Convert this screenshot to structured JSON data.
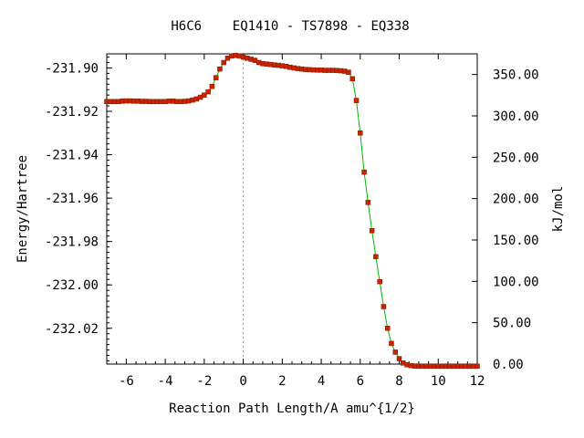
{
  "chart_data": {
    "type": "line",
    "title": "H6C6    EQ1410 - TS7898 - EQ338",
    "xlabel": "Reaction Path Length/A amu^{1/2}",
    "ylabel": "Energy/Hartree",
    "y2label": "kJ/mol",
    "xlim": [
      -7,
      12
    ],
    "ylim": [
      -232.0365,
      -231.8935
    ],
    "y2lim": [
      0,
      375
    ],
    "xticks": [
      "-6",
      "-4",
      "-2",
      "0",
      "2",
      "4",
      "6",
      "8",
      "10",
      "12"
    ],
    "xtick_values": [
      -6,
      -4,
      -2,
      0,
      2,
      4,
      6,
      8,
      10,
      12
    ],
    "yticks": [
      "-231.90",
      "-231.92",
      "-231.94",
      "-231.96",
      "-231.98",
      "-232.00",
      "-232.02"
    ],
    "ytick_values": [
      -231.9,
      -231.92,
      -231.94,
      -231.96,
      -231.98,
      -232.0,
      -232.02
    ],
    "y2ticks": [
      "350.00",
      "300.00",
      "250.00",
      "200.00",
      "150.00",
      "100.00",
      "50.00",
      "0.00"
    ],
    "y2tick_values": [
      350,
      300,
      250,
      200,
      150,
      100,
      50,
      0
    ],
    "ts_marker_x": 0,
    "grid": false,
    "line_color": "#00bb00",
    "marker_color": "#cc2200",
    "series": [
      {
        "x": [
          -7.0,
          -6.8,
          -6.6,
          -6.4,
          -6.2,
          -6.0,
          -5.8,
          -5.6,
          -5.4,
          -5.2,
          -5.0,
          -4.8,
          -4.6,
          -4.4,
          -4.2,
          -4.0,
          -3.8,
          -3.6,
          -3.4,
          -3.2,
          -3.0,
          -2.8,
          -2.6,
          -2.4,
          -2.2,
          -2.0,
          -1.8,
          -1.6,
          -1.4,
          -1.2,
          -1.0,
          -0.8,
          -0.6,
          -0.4,
          -0.2,
          0.0,
          0.2,
          0.4,
          0.6,
          0.8,
          1.0,
          1.2,
          1.4,
          1.6,
          1.8,
          2.0,
          2.2,
          2.4,
          2.6,
          2.8,
          3.0,
          3.2,
          3.4,
          3.6,
          3.8,
          4.0,
          4.2,
          4.4,
          4.6,
          4.8,
          5.0,
          5.2,
          5.4,
          5.6,
          5.8,
          6.0,
          6.2,
          6.4,
          6.6,
          6.8,
          7.0,
          7.2,
          7.4,
          7.6,
          7.8,
          8.0,
          8.2,
          8.4,
          8.6,
          8.8,
          9.0,
          9.2,
          9.4,
          9.6,
          9.8,
          10.0,
          10.2,
          10.4,
          10.6,
          10.8,
          11.0,
          11.2,
          11.4,
          11.6,
          11.8,
          12.0
        ],
        "y": [
          -231.9155,
          -231.9155,
          -231.9155,
          -231.9155,
          -231.9153,
          -231.9152,
          -231.9152,
          -231.9153,
          -231.9153,
          -231.9154,
          -231.9154,
          -231.9155,
          -231.9155,
          -231.9155,
          -231.9155,
          -231.9155,
          -231.9153,
          -231.9153,
          -231.9155,
          -231.9155,
          -231.9154,
          -231.9152,
          -231.9148,
          -231.9143,
          -231.9135,
          -231.9125,
          -231.911,
          -231.9085,
          -231.9045,
          -231.9005,
          -231.8975,
          -231.8955,
          -231.8945,
          -231.8942,
          -231.8945,
          -231.895,
          -231.8955,
          -231.896,
          -231.8965,
          -231.8975,
          -231.898,
          -231.8982,
          -231.8984,
          -231.8986,
          -231.8988,
          -231.899,
          -231.8993,
          -231.8997,
          -231.9,
          -231.9003,
          -231.9005,
          -231.9007,
          -231.9008,
          -231.9009,
          -231.901,
          -231.901,
          -231.9011,
          -231.9011,
          -231.9011,
          -231.9012,
          -231.9013,
          -231.9015,
          -231.902,
          -231.905,
          -231.915,
          -231.93,
          -231.948,
          -231.962,
          -231.975,
          -231.987,
          -231.9985,
          -232.01,
          -232.02,
          -232.027,
          -232.031,
          -232.034,
          -232.036,
          -232.0368,
          -232.0372,
          -232.0374,
          -232.0375,
          -232.0375,
          -232.0375,
          -232.0375,
          -232.0375,
          -232.0375,
          -232.0375,
          -232.0375,
          -232.0375,
          -232.0375,
          -232.0375,
          -232.0375,
          -232.0375,
          -232.0375,
          -232.0375,
          -232.0375
        ]
      }
    ]
  }
}
